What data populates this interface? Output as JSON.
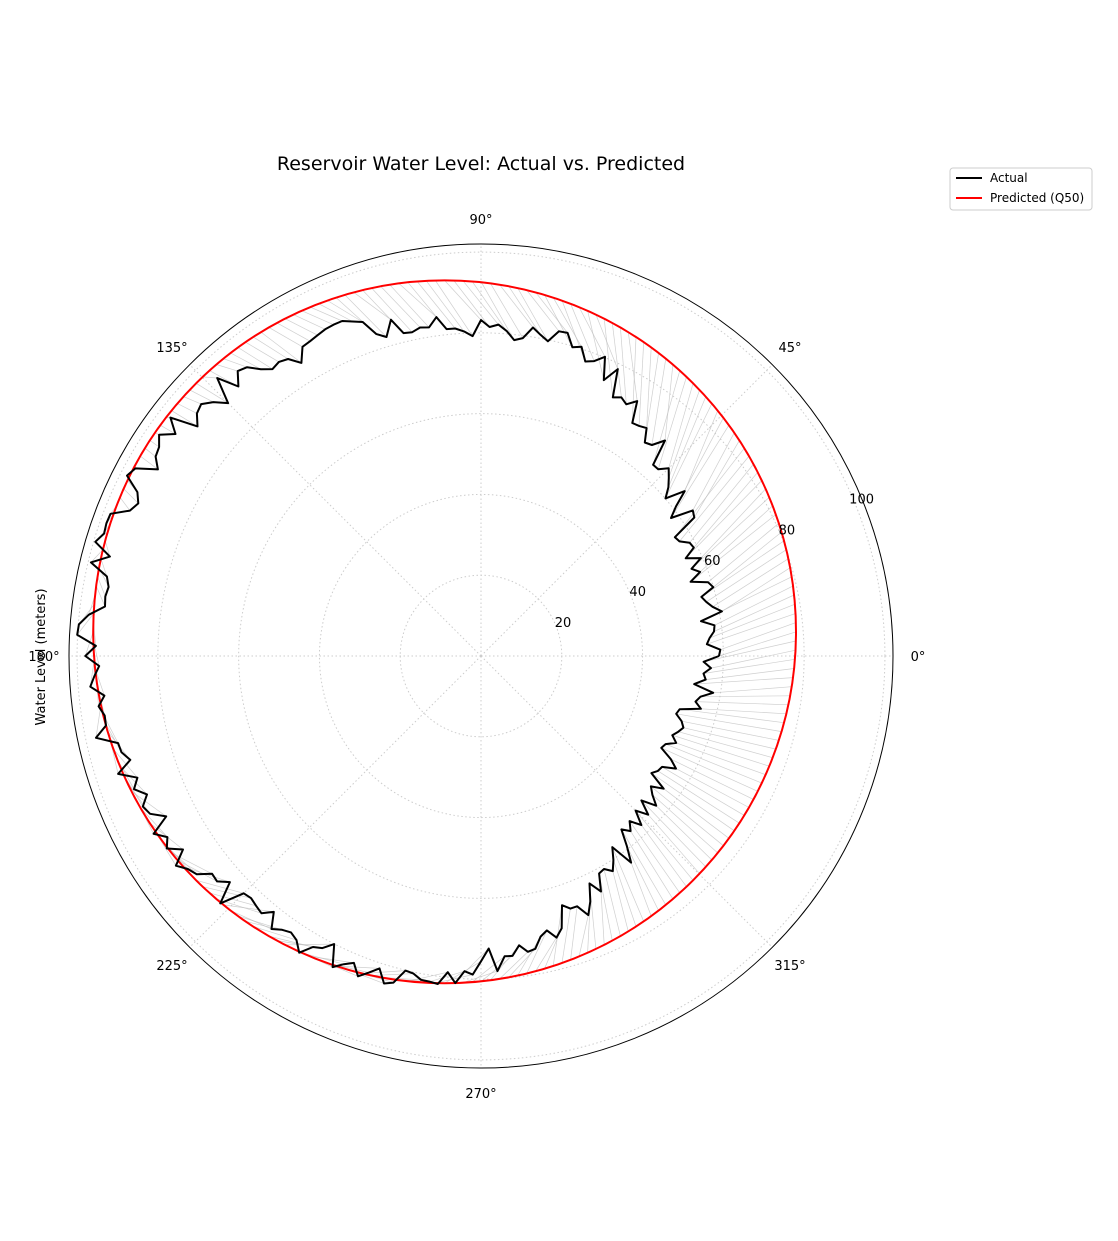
{
  "chart_data": {
    "type": "polar-line",
    "title": "Reservoir Water Level: Actual vs. Predicted",
    "ylabel": "Water Level (meters)",
    "angle_ticks": [
      "0°",
      "45°",
      "90°",
      "135°",
      "180°",
      "225°",
      "270°",
      "315°"
    ],
    "radial_ticks": [
      20,
      40,
      60,
      80,
      100
    ],
    "rlim": [
      0,
      102
    ],
    "grid": true,
    "legend_position": "upper-right-outside",
    "colors": {
      "actual": "#000000",
      "predicted": "#ff0000",
      "band": "#bbbbbb",
      "grid": "#cccccc"
    },
    "series": [
      {
        "name": "Actual",
        "angle_deg": [
          0,
          10,
          20,
          30,
          40,
          50,
          60,
          70,
          80,
          90,
          100,
          110,
          120,
          130,
          140,
          150,
          160,
          170,
          180,
          190,
          200,
          210,
          220,
          230,
          240,
          250,
          260,
          270,
          280,
          290,
          300,
          310,
          320,
          330,
          340,
          350,
          360
        ],
        "values": [
          59,
          58,
          58,
          59,
          62,
          67,
          73,
          79,
          83,
          80,
          83,
          86,
          88,
          91,
          93,
          95,
          97,
          97,
          98,
          96,
          93,
          90,
          87,
          85,
          83,
          82,
          80,
          76,
          72,
          67,
          63,
          58,
          54,
          53,
          53,
          55,
          59
        ]
      },
      {
        "name": "Predicted (Q50)",
        "center_offset": [
          -9,
          6
        ],
        "radius": 87
      }
    ]
  }
}
